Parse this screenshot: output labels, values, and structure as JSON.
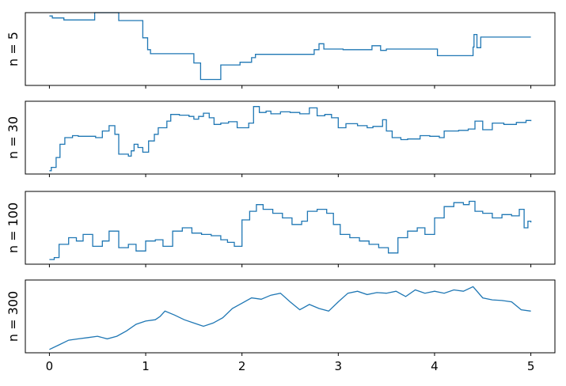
{
  "chart_data": [
    {
      "type": "line",
      "ylabel": "n = 5",
      "xlim": [
        -0.25,
        5.25
      ],
      "ylim": [
        -0.05,
        1.05
      ],
      "xticks": [
        0,
        1,
        2,
        3,
        4,
        5
      ],
      "show_xticklabels": false,
      "step": true,
      "points": [
        [
          0,
          1.0
        ],
        [
          0.03,
          0.97
        ],
        [
          0.15,
          0.94
        ],
        [
          0.47,
          1.05
        ],
        [
          0.72,
          0.93
        ],
        [
          0.97,
          0.67
        ],
        [
          1.02,
          0.49
        ],
        [
          1.05,
          0.43
        ],
        [
          1.5,
          0.29
        ],
        [
          1.57,
          0.04
        ],
        [
          1.78,
          0.26
        ],
        [
          1.98,
          0.3
        ],
        [
          2.1,
          0.37
        ],
        [
          2.14,
          0.42
        ],
        [
          2.75,
          0.49
        ],
        [
          2.8,
          0.58
        ],
        [
          2.85,
          0.5
        ],
        [
          3.05,
          0.49
        ],
        [
          3.35,
          0.55
        ],
        [
          3.44,
          0.48
        ],
        [
          3.5,
          0.5
        ],
        [
          3.67,
          0.5
        ],
        [
          4.03,
          0.4
        ],
        [
          4.4,
          0.53
        ],
        [
          4.41,
          0.72
        ],
        [
          4.44,
          0.52
        ],
        [
          4.48,
          0.68
        ],
        [
          5.0,
          0.68
        ]
      ]
    },
    {
      "type": "line",
      "ylabel": "n = 30",
      "xlim": [
        -0.25,
        5.25
      ],
      "ylim": [
        -0.05,
        1.05
      ],
      "xticks": [
        0,
        1,
        2,
        3,
        4,
        5
      ],
      "show_xticklabels": false,
      "step": true,
      "points": [
        [
          0,
          0.0
        ],
        [
          0.02,
          0.05
        ],
        [
          0.07,
          0.2
        ],
        [
          0.11,
          0.4
        ],
        [
          0.16,
          0.5
        ],
        [
          0.24,
          0.53
        ],
        [
          0.3,
          0.52
        ],
        [
          0.48,
          0.5
        ],
        [
          0.55,
          0.6
        ],
        [
          0.62,
          0.68
        ],
        [
          0.68,
          0.55
        ],
        [
          0.72,
          0.25
        ],
        [
          0.82,
          0.22
        ],
        [
          0.85,
          0.3
        ],
        [
          0.88,
          0.4
        ],
        [
          0.92,
          0.35
        ],
        [
          0.97,
          0.28
        ],
        [
          1.03,
          0.45
        ],
        [
          1.09,
          0.55
        ],
        [
          1.13,
          0.65
        ],
        [
          1.22,
          0.75
        ],
        [
          1.26,
          0.85
        ],
        [
          1.35,
          0.84
        ],
        [
          1.45,
          0.82
        ],
        [
          1.5,
          0.78
        ],
        [
          1.55,
          0.82
        ],
        [
          1.6,
          0.87
        ],
        [
          1.66,
          0.8
        ],
        [
          1.71,
          0.7
        ],
        [
          1.78,
          0.72
        ],
        [
          1.86,
          0.74
        ],
        [
          1.95,
          0.65
        ],
        [
          2.07,
          0.72
        ],
        [
          2.12,
          0.97
        ],
        [
          2.18,
          0.88
        ],
        [
          2.25,
          0.9
        ],
        [
          2.3,
          0.86
        ],
        [
          2.4,
          0.89
        ],
        [
          2.5,
          0.88
        ],
        [
          2.6,
          0.86
        ],
        [
          2.7,
          0.95
        ],
        [
          2.78,
          0.83
        ],
        [
          2.86,
          0.85
        ],
        [
          2.93,
          0.8
        ],
        [
          3.0,
          0.65
        ],
        [
          3.08,
          0.71
        ],
        [
          3.2,
          0.68
        ],
        [
          3.3,
          0.65
        ],
        [
          3.36,
          0.67
        ],
        [
          3.46,
          0.77
        ],
        [
          3.5,
          0.6
        ],
        [
          3.56,
          0.5
        ],
        [
          3.65,
          0.47
        ],
        [
          3.72,
          0.48
        ],
        [
          3.85,
          0.53
        ],
        [
          3.95,
          0.52
        ],
        [
          4.05,
          0.5
        ],
        [
          4.1,
          0.6
        ],
        [
          4.25,
          0.61
        ],
        [
          4.35,
          0.63
        ],
        [
          4.42,
          0.75
        ],
        [
          4.5,
          0.62
        ],
        [
          4.6,
          0.72
        ],
        [
          4.72,
          0.7
        ],
        [
          4.85,
          0.73
        ],
        [
          4.95,
          0.76
        ],
        [
          5.0,
          0.75
        ]
      ]
    },
    {
      "type": "line",
      "ylabel": "n = 100",
      "xlim": [
        -0.25,
        5.25
      ],
      "ylim": [
        -0.05,
        1.05
      ],
      "xticks": [
        0,
        1,
        2,
        3,
        4,
        5
      ],
      "show_xticklabels": false,
      "step": true,
      "points": [
        [
          0,
          0.02
        ],
        [
          0.05,
          0.05
        ],
        [
          0.1,
          0.25
        ],
        [
          0.2,
          0.35
        ],
        [
          0.28,
          0.3
        ],
        [
          0.35,
          0.4
        ],
        [
          0.45,
          0.22
        ],
        [
          0.55,
          0.3
        ],
        [
          0.62,
          0.45
        ],
        [
          0.72,
          0.2
        ],
        [
          0.82,
          0.25
        ],
        [
          0.9,
          0.15
        ],
        [
          1.0,
          0.3
        ],
        [
          1.1,
          0.32
        ],
        [
          1.18,
          0.22
        ],
        [
          1.28,
          0.45
        ],
        [
          1.38,
          0.5
        ],
        [
          1.48,
          0.42
        ],
        [
          1.58,
          0.4
        ],
        [
          1.68,
          0.38
        ],
        [
          1.78,
          0.32
        ],
        [
          1.85,
          0.28
        ],
        [
          1.92,
          0.22
        ],
        [
          2.0,
          0.62
        ],
        [
          2.08,
          0.75
        ],
        [
          2.15,
          0.85
        ],
        [
          2.22,
          0.78
        ],
        [
          2.32,
          0.72
        ],
        [
          2.42,
          0.65
        ],
        [
          2.52,
          0.55
        ],
        [
          2.62,
          0.6
        ],
        [
          2.68,
          0.75
        ],
        [
          2.78,
          0.78
        ],
        [
          2.88,
          0.72
        ],
        [
          2.95,
          0.55
        ],
        [
          3.02,
          0.4
        ],
        [
          3.12,
          0.35
        ],
        [
          3.22,
          0.3
        ],
        [
          3.32,
          0.25
        ],
        [
          3.42,
          0.2
        ],
        [
          3.52,
          0.12
        ],
        [
          3.62,
          0.35
        ],
        [
          3.72,
          0.45
        ],
        [
          3.82,
          0.5
        ],
        [
          3.9,
          0.4
        ],
        [
          4.0,
          0.65
        ],
        [
          4.1,
          0.82
        ],
        [
          4.2,
          0.88
        ],
        [
          4.3,
          0.85
        ],
        [
          4.36,
          0.9
        ],
        [
          4.42,
          0.75
        ],
        [
          4.5,
          0.72
        ],
        [
          4.6,
          0.65
        ],
        [
          4.7,
          0.7
        ],
        [
          4.8,
          0.68
        ],
        [
          4.88,
          0.78
        ],
        [
          4.93,
          0.5
        ],
        [
          4.97,
          0.6
        ],
        [
          5.0,
          0.58
        ]
      ]
    },
    {
      "type": "line",
      "ylabel": "n = 300",
      "xlim": [
        -0.25,
        5.25
      ],
      "ylim": [
        -0.05,
        1.05
      ],
      "xticks": [
        0,
        1,
        2,
        3,
        4,
        5
      ],
      "xticklabels": [
        "0",
        "1",
        "2",
        "3",
        "4",
        "5"
      ],
      "show_xticklabels": true,
      "step": false,
      "points": [
        [
          0,
          0.0
        ],
        [
          0.1,
          0.07
        ],
        [
          0.2,
          0.14
        ],
        [
          0.3,
          0.16
        ],
        [
          0.4,
          0.18
        ],
        [
          0.5,
          0.2
        ],
        [
          0.6,
          0.16
        ],
        [
          0.7,
          0.2
        ],
        [
          0.8,
          0.28
        ],
        [
          0.9,
          0.38
        ],
        [
          1.0,
          0.43
        ],
        [
          1.1,
          0.45
        ],
        [
          1.15,
          0.5
        ],
        [
          1.2,
          0.58
        ],
        [
          1.3,
          0.52
        ],
        [
          1.4,
          0.45
        ],
        [
          1.5,
          0.4
        ],
        [
          1.6,
          0.35
        ],
        [
          1.7,
          0.4
        ],
        [
          1.8,
          0.48
        ],
        [
          1.9,
          0.62
        ],
        [
          2.0,
          0.7
        ],
        [
          2.1,
          0.78
        ],
        [
          2.2,
          0.76
        ],
        [
          2.3,
          0.82
        ],
        [
          2.4,
          0.85
        ],
        [
          2.5,
          0.72
        ],
        [
          2.6,
          0.6
        ],
        [
          2.7,
          0.68
        ],
        [
          2.8,
          0.62
        ],
        [
          2.9,
          0.58
        ],
        [
          3.0,
          0.72
        ],
        [
          3.1,
          0.85
        ],
        [
          3.2,
          0.88
        ],
        [
          3.3,
          0.83
        ],
        [
          3.4,
          0.86
        ],
        [
          3.5,
          0.85
        ],
        [
          3.6,
          0.88
        ],
        [
          3.7,
          0.8
        ],
        [
          3.8,
          0.9
        ],
        [
          3.9,
          0.85
        ],
        [
          4.0,
          0.88
        ],
        [
          4.1,
          0.85
        ],
        [
          4.2,
          0.9
        ],
        [
          4.3,
          0.88
        ],
        [
          4.4,
          0.95
        ],
        [
          4.5,
          0.78
        ],
        [
          4.6,
          0.75
        ],
        [
          4.7,
          0.74
        ],
        [
          4.8,
          0.72
        ],
        [
          4.9,
          0.6
        ],
        [
          5.0,
          0.58
        ]
      ]
    }
  ],
  "colors": {
    "series": "#1f77b4",
    "frame": "#000000"
  }
}
